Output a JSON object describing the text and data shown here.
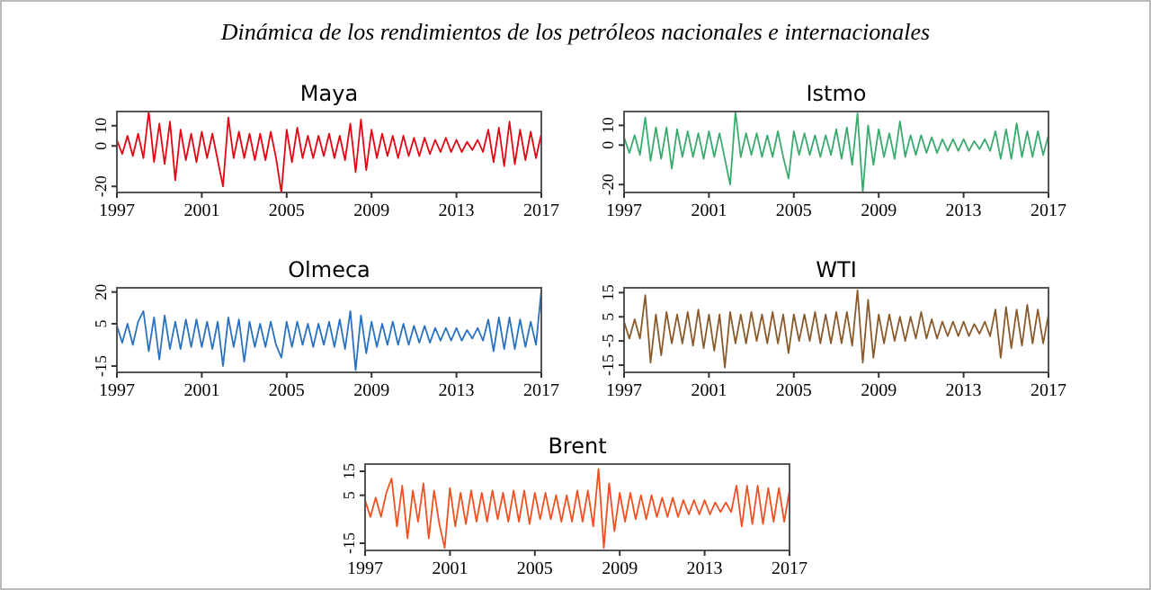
{
  "chart_data": [
    {
      "type": "line",
      "title": "Dinámica de los rendimientos de los petróleos nacionales e internacionales",
      "subtitle": "Maya",
      "xlim": [
        1997,
        2017
      ],
      "xticks": [
        1997,
        2001,
        2005,
        2009,
        2013,
        2017
      ],
      "ylim": [
        -23,
        17
      ],
      "yticks": [
        -20,
        0,
        10
      ],
      "x": [
        1997,
        1997.25,
        1997.5,
        1997.75,
        1998,
        1998.25,
        1998.5,
        1998.75,
        1999,
        1999.25,
        1999.5,
        1999.75,
        2000,
        2000.25,
        2000.5,
        2000.75,
        2001,
        2001.25,
        2001.5,
        2001.75,
        2002,
        2002.25,
        2002.5,
        2002.75,
        2003,
        2003.25,
        2003.5,
        2003.75,
        2004,
        2004.25,
        2004.5,
        2004.75,
        2005,
        2005.25,
        2005.5,
        2005.75,
        2006,
        2006.25,
        2006.5,
        2006.75,
        2007,
        2007.25,
        2007.5,
        2007.75,
        2008,
        2008.25,
        2008.5,
        2008.75,
        2009,
        2009.25,
        2009.5,
        2009.75,
        2010,
        2010.25,
        2010.5,
        2010.75,
        2011,
        2011.25,
        2011.5,
        2011.75,
        2012,
        2012.25,
        2012.5,
        2012.75,
        2013,
        2013.25,
        2013.5,
        2013.75,
        2014,
        2014.25,
        2014.5,
        2014.75,
        2015,
        2015.25,
        2015.5,
        2015.75,
        2016,
        2016.25,
        2016.5,
        2016.75,
        2017
      ],
      "series": [
        {
          "color": "#e30613",
          "values": [
            3,
            -4,
            5,
            -5,
            6,
            -6,
            17,
            -8,
            11,
            -9,
            12,
            -17,
            8,
            -7,
            6,
            -8,
            7,
            -6,
            6,
            -7,
            -20,
            14,
            -6,
            7,
            -6,
            6,
            -7,
            6,
            -7,
            7,
            -6,
            -23,
            8,
            -8,
            9,
            -6,
            5,
            -6,
            5,
            -5,
            6,
            -6,
            5,
            -7,
            11,
            -13,
            13,
            -12,
            8,
            -6,
            6,
            -5,
            5,
            -6,
            5,
            -5,
            4,
            -5,
            4,
            -4,
            3,
            -3,
            4,
            -3,
            3,
            -3,
            2,
            -2,
            3,
            -3,
            8,
            -8,
            9,
            -10,
            12,
            -9,
            8,
            -7,
            7,
            -6,
            6
          ]
        }
      ]
    },
    {
      "type": "line",
      "title": "Istmo",
      "xlim": [
        1997,
        2017
      ],
      "xticks": [
        1997,
        2001,
        2005,
        2009,
        2013,
        2017
      ],
      "ylim": [
        -24,
        17
      ],
      "yticks": [
        -20,
        0,
        10
      ],
      "x": [
        1997,
        1997.25,
        1997.5,
        1997.75,
        1998,
        1998.25,
        1998.5,
        1998.75,
        1999,
        1999.25,
        1999.5,
        1999.75,
        2000,
        2000.25,
        2000.5,
        2000.75,
        2001,
        2001.25,
        2001.5,
        2001.75,
        2002,
        2002.25,
        2002.5,
        2002.75,
        2003,
        2003.25,
        2003.5,
        2003.75,
        2004,
        2004.25,
        2004.5,
        2004.75,
        2005,
        2005.25,
        2005.5,
        2005.75,
        2006,
        2006.25,
        2006.5,
        2006.75,
        2007,
        2007.25,
        2007.5,
        2007.75,
        2008,
        2008.25,
        2008.5,
        2008.75,
        2009,
        2009.25,
        2009.5,
        2009.75,
        2010,
        2010.25,
        2010.5,
        2010.75,
        2011,
        2011.25,
        2011.5,
        2011.75,
        2012,
        2012.25,
        2012.5,
        2012.75,
        2013,
        2013.25,
        2013.5,
        2013.75,
        2014,
        2014.25,
        2014.5,
        2014.75,
        2015,
        2015.25,
        2015.5,
        2015.75,
        2016,
        2016.25,
        2016.5,
        2016.75,
        2017
      ],
      "series": [
        {
          "color": "#3aab6e",
          "values": [
            4,
            -4,
            5,
            -5,
            14,
            -8,
            9,
            -7,
            9,
            -12,
            8,
            -6,
            7,
            -6,
            6,
            -7,
            7,
            -6,
            6,
            -7,
            -20,
            17,
            -6,
            6,
            -5,
            6,
            -6,
            5,
            -6,
            7,
            -6,
            -17,
            7,
            -5,
            6,
            -5,
            5,
            -6,
            5,
            -5,
            8,
            -7,
            9,
            -10,
            16,
            -24,
            10,
            -10,
            8,
            -6,
            6,
            -7,
            12,
            -6,
            5,
            -5,
            5,
            -4,
            4,
            -4,
            3,
            -3,
            3,
            -3,
            3,
            -3,
            2,
            -2,
            3,
            -3,
            7,
            -7,
            8,
            -7,
            11,
            -6,
            7,
            -6,
            7,
            -5,
            5
          ]
        }
      ]
    },
    {
      "type": "line",
      "title": "Olmeca",
      "xlim": [
        1997,
        2017
      ],
      "xticks": [
        1997,
        2001,
        2005,
        2009,
        2013,
        2017
      ],
      "ylim": [
        -18,
        22
      ],
      "yticks": [
        -15,
        5,
        20
      ],
      "x": [
        1997,
        1997.25,
        1997.5,
        1997.75,
        1998,
        1998.25,
        1998.5,
        1998.75,
        1999,
        1999.25,
        1999.5,
        1999.75,
        2000,
        2000.25,
        2000.5,
        2000.75,
        2001,
        2001.25,
        2001.5,
        2001.75,
        2002,
        2002.25,
        2002.5,
        2002.75,
        2003,
        2003.25,
        2003.5,
        2003.75,
        2004,
        2004.25,
        2004.5,
        2004.75,
        2005,
        2005.25,
        2005.5,
        2005.75,
        2006,
        2006.25,
        2006.5,
        2006.75,
        2007,
        2007.25,
        2007.5,
        2007.75,
        2008,
        2008.25,
        2008.5,
        2008.75,
        2009,
        2009.25,
        2009.5,
        2009.75,
        2010,
        2010.25,
        2010.5,
        2010.75,
        2011,
        2011.25,
        2011.5,
        2011.75,
        2012,
        2012.25,
        2012.5,
        2012.75,
        2013,
        2013.25,
        2013.5,
        2013.75,
        2014,
        2014.25,
        2014.5,
        2014.75,
        2015,
        2015.25,
        2015.5,
        2015.75,
        2016,
        2016.25,
        2016.5,
        2016.75,
        2017
      ],
      "series": [
        {
          "color": "#2a72c0",
          "values": [
            4,
            -4,
            5,
            -5,
            6,
            11,
            -8,
            8,
            -12,
            9,
            -7,
            6,
            -7,
            7,
            -6,
            7,
            -6,
            6,
            -7,
            6,
            -15,
            8,
            -6,
            7,
            -13,
            6,
            -6,
            5,
            -6,
            6,
            -5,
            -11,
            6,
            -6,
            6,
            -5,
            5,
            -6,
            5,
            -5,
            6,
            -6,
            7,
            -7,
            11,
            -17,
            9,
            -9,
            6,
            -6,
            5,
            -5,
            6,
            -5,
            5,
            -5,
            4,
            -4,
            4,
            -4,
            3,
            -3,
            3,
            -3,
            3,
            -3,
            2,
            -2,
            3,
            -3,
            7,
            -8,
            8,
            -7,
            8,
            -7,
            7,
            -6,
            6,
            -5,
            21
          ]
        }
      ]
    },
    {
      "type": "line",
      "title": "WTI",
      "xlim": [
        1997,
        2017
      ],
      "xticks": [
        1997,
        2001,
        2005,
        2009,
        2013,
        2017
      ],
      "ylim": [
        -18,
        17
      ],
      "yticks": [
        -15,
        -5,
        5,
        15
      ],
      "x": [
        1997,
        1997.25,
        1997.5,
        1997.75,
        1998,
        1998.25,
        1998.5,
        1998.75,
        1999,
        1999.25,
        1999.5,
        1999.75,
        2000,
        2000.25,
        2000.5,
        2000.75,
        2001,
        2001.25,
        2001.5,
        2001.75,
        2002,
        2002.25,
        2002.5,
        2002.75,
        2003,
        2003.25,
        2003.5,
        2003.75,
        2004,
        2004.25,
        2004.5,
        2004.75,
        2005,
        2005.25,
        2005.5,
        2005.75,
        2006,
        2006.25,
        2006.5,
        2006.75,
        2007,
        2007.25,
        2007.5,
        2007.75,
        2008,
        2008.25,
        2008.5,
        2008.75,
        2009,
        2009.25,
        2009.5,
        2009.75,
        2010,
        2010.25,
        2010.5,
        2010.75,
        2011,
        2011.25,
        2011.5,
        2011.75,
        2012,
        2012.25,
        2012.5,
        2012.75,
        2013,
        2013.25,
        2013.5,
        2013.75,
        2014,
        2014.25,
        2014.5,
        2014.75,
        2015,
        2015.25,
        2015.5,
        2015.75,
        2016,
        2016.25,
        2016.5,
        2016.75,
        2017
      ],
      "series": [
        {
          "color": "#8b5a2b",
          "values": [
            3,
            -4,
            4,
            -4,
            14,
            -14,
            6,
            -11,
            7,
            -6,
            6,
            -6,
            7,
            -7,
            8,
            -8,
            6,
            -9,
            6,
            -16,
            7,
            -6,
            6,
            -6,
            7,
            -5,
            6,
            -6,
            7,
            -6,
            6,
            -10,
            6,
            -5,
            6,
            -5,
            7,
            -6,
            6,
            -6,
            7,
            -6,
            7,
            -7,
            16,
            -14,
            12,
            -12,
            6,
            -6,
            6,
            -5,
            5,
            -5,
            5,
            -4,
            7,
            -4,
            4,
            -4,
            3,
            -3,
            3,
            -3,
            3,
            -3,
            2,
            -2,
            3,
            -3,
            8,
            -12,
            9,
            -8,
            8,
            -7,
            10,
            -6,
            8,
            -6,
            6
          ]
        }
      ]
    },
    {
      "type": "line",
      "title": "Brent",
      "xlim": [
        1997,
        2017
      ],
      "xticks": [
        1997,
        2001,
        2005,
        2009,
        2013,
        2017
      ],
      "ylim": [
        -18,
        18
      ],
      "yticks": [
        -15,
        5,
        15
      ],
      "x": [
        1997,
        1997.25,
        1997.5,
        1997.75,
        1998,
        1998.25,
        1998.5,
        1998.75,
        1999,
        1999.25,
        1999.5,
        1999.75,
        2000,
        2000.25,
        2000.5,
        2000.75,
        2001,
        2001.25,
        2001.5,
        2001.75,
        2002,
        2002.25,
        2002.5,
        2002.75,
        2003,
        2003.25,
        2003.5,
        2003.75,
        2004,
        2004.25,
        2004.5,
        2004.75,
        2005,
        2005.25,
        2005.5,
        2005.75,
        2006,
        2006.25,
        2006.5,
        2006.75,
        2007,
        2007.25,
        2007.5,
        2007.75,
        2008,
        2008.25,
        2008.5,
        2008.75,
        2009,
        2009.25,
        2009.5,
        2009.75,
        2010,
        2010.25,
        2010.5,
        2010.75,
        2011,
        2011.25,
        2011.5,
        2011.75,
        2012,
        2012.25,
        2012.5,
        2012.75,
        2013,
        2013.25,
        2013.5,
        2013.75,
        2014,
        2014.25,
        2014.5,
        2014.75,
        2015,
        2015.25,
        2015.5,
        2015.75,
        2016,
        2016.25,
        2016.5,
        2016.75,
        2017
      ],
      "series": [
        {
          "color": "#f05022",
          "values": [
            3,
            -4,
            4,
            -4,
            6,
            12,
            -8,
            9,
            -13,
            7,
            -6,
            10,
            -13,
            7,
            -7,
            -17,
            8,
            -8,
            6,
            -7,
            7,
            -6,
            6,
            -6,
            7,
            -5,
            6,
            -6,
            7,
            -6,
            7,
            -7,
            6,
            -5,
            6,
            -5,
            5,
            -6,
            5,
            -6,
            7,
            -6,
            7,
            -8,
            16,
            -17,
            10,
            -10,
            6,
            -6,
            6,
            -5,
            5,
            -5,
            5,
            -4,
            4,
            -4,
            4,
            -4,
            3,
            -3,
            3,
            -3,
            3,
            -3,
            2,
            -2,
            2,
            -2,
            9,
            -8,
            9,
            -7,
            9,
            -7,
            8,
            -6,
            8,
            -6,
            7
          ]
        }
      ]
    }
  ]
}
